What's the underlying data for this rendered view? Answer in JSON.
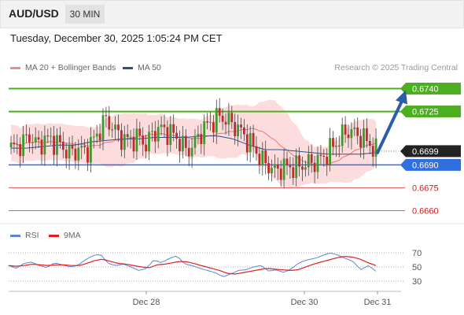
{
  "header": {
    "symbol": "AUD/USD",
    "timeframe": "30 MIN"
  },
  "datetime": "Tuesday, December 30, 2025 1:05:24 PM CET",
  "source": "Research © 2025 Trading Central",
  "legend": {
    "bollinger": {
      "label": "MA 20 + Bollinger Bands",
      "color": "#f08a8a"
    },
    "ma50": {
      "label": "MA 50",
      "color": "#2f4f8f"
    }
  },
  "colors": {
    "resistance": "#4caf1f",
    "current": "#222222",
    "pivot": "#2f6fe0",
    "support": "#e06060",
    "bb_fill": "#fbd3d3",
    "up": "#3e9a2e",
    "down": "#c62828",
    "rsi": "#5b86d6",
    "rsi_ma": "#e02020",
    "arrow": "#2a5ea8"
  },
  "chart_data": [
    {
      "type": "candlestick",
      "title": "AUD/USD 30 MIN",
      "ylim": [
        0.6652,
        0.6748
      ],
      "x_ticks": [
        "Dec 28",
        "Dec 30",
        "Dec 31"
      ],
      "levels": [
        {
          "value": 0.674,
          "label": "0.6740",
          "kind": "resistance"
        },
        {
          "value": 0.6725,
          "label": "0.6725",
          "kind": "resistance"
        },
        {
          "value": 0.6699,
          "label": "0.6699",
          "kind": "current"
        },
        {
          "value": 0.669,
          "label": "0.6690",
          "kind": "pivot"
        },
        {
          "value": 0.6675,
          "label": "0.6675",
          "kind": "support"
        },
        {
          "value": 0.666,
          "label": "0.6660",
          "kind": "support"
        }
      ],
      "close_anchors": [
        0.6701,
        0.6702,
        0.6706,
        0.6709,
        0.6702,
        0.6707,
        0.6706,
        0.6704,
        0.67,
        0.6697,
        0.6701,
        0.6698,
        0.6705,
        0.6712,
        0.672,
        0.6715,
        0.6709,
        0.6706,
        0.6707,
        0.6708,
        0.6703,
        0.6711,
        0.6714,
        0.6712,
        0.671,
        0.6705,
        0.6699,
        0.6703,
        0.6711,
        0.6716,
        0.6719,
        0.6722,
        0.6719,
        0.6716,
        0.6712,
        0.6706,
        0.6701,
        0.6693,
        0.669,
        0.6686,
        0.6688,
        0.6689,
        0.6688,
        0.669,
        0.6691,
        0.6692,
        0.6694,
        0.6699,
        0.6704,
        0.6709,
        0.6713,
        0.671,
        0.6708,
        0.6704,
        0.6699
      ],
      "ma50_anchors": [
        0.6701,
        0.6701,
        0.6702,
        0.6703,
        0.6703,
        0.6705,
        0.6706,
        0.6707,
        0.6707,
        0.6708,
        0.6708,
        0.6708,
        0.6709,
        0.6709,
        0.6707,
        0.6703,
        0.67,
        0.67,
        0.6699,
        0.6698,
        0.6697,
        0.6697,
        0.6697,
        0.6698
      ],
      "forecast": {
        "from": 0.6698,
        "to": 0.674
      }
    },
    {
      "type": "line",
      "title": "RSI",
      "ylim": [
        20,
        80
      ],
      "y_ticks": [
        "70",
        "50",
        "30"
      ],
      "series": [
        {
          "name": "RSI",
          "anchors": [
            52,
            48,
            55,
            57,
            52,
            49,
            56,
            53,
            50,
            52,
            60,
            66,
            68,
            55,
            52,
            54,
            50,
            45,
            48,
            60,
            56,
            62,
            66,
            54,
            52,
            48,
            45,
            42,
            36,
            40,
            45,
            46,
            50,
            52,
            44,
            46,
            42,
            48,
            56,
            60,
            62,
            66,
            70,
            67,
            62,
            58,
            46,
            52,
            44
          ]
        },
        {
          "name": "9MA",
          "anchors": [
            52,
            51,
            52,
            54,
            53,
            52,
            53,
            53,
            52,
            52,
            55,
            59,
            61,
            58,
            55,
            54,
            52,
            50,
            49,
            53,
            54,
            56,
            58,
            57,
            54,
            51,
            48,
            45,
            41,
            40,
            42,
            44,
            46,
            48,
            47,
            46,
            45,
            46,
            50,
            54,
            57,
            60,
            63,
            65,
            64,
            61,
            56,
            52
          ]
        }
      ]
    }
  ]
}
